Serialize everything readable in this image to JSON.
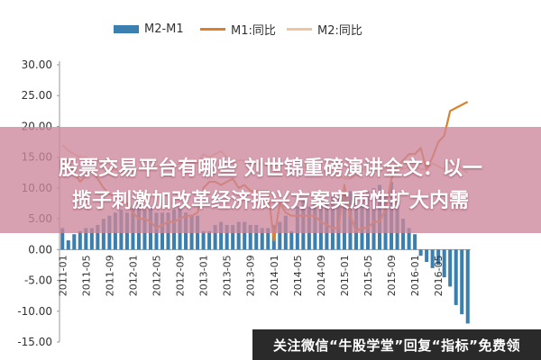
{
  "chart_data": {
    "type": "bar+line",
    "legend_position": "top",
    "grid": false,
    "ylim": [
      -15,
      30
    ],
    "yticks": [
      "30.00",
      "25.00",
      "20.00",
      "15.00",
      "10.00",
      "5.00",
      "0.00",
      "-5.00",
      "-10.00",
      "-15.00"
    ],
    "x_tick_labels": [
      "2011-01",
      "2011-05",
      "2011-09",
      "2012-01",
      "2012-05",
      "2012-09",
      "2013-01",
      "2013-05",
      "2013-09",
      "2014-01",
      "2014-05",
      "2014-09",
      "2015-01",
      "2015-05",
      "2015-09",
      "2016-01",
      "2016-05"
    ],
    "series": [
      {
        "name": "M2-M1",
        "kind": "bar",
        "color": "#3a7fad",
        "values": [
          3.5,
          1.5,
          2.5,
          3.0,
          3.5,
          3.5,
          4.0,
          5.0,
          5.5,
          6.0,
          6.5,
          6.0,
          7.0,
          8.0,
          6.5,
          7.0,
          6.0,
          6.0,
          6.0,
          6.5,
          7.0,
          6.0,
          5.5,
          5.5,
          3.0,
          3.0,
          4.0,
          4.5,
          4.0,
          4.0,
          4.5,
          4.5,
          4.0,
          4.0,
          3.5,
          3.5,
          4.0,
          4.5,
          5.5,
          3.0,
          7.0,
          8.0,
          7.0,
          7.5,
          8.0,
          8.0,
          9.0,
          8.5,
          9.5,
          9.5,
          9.0,
          9.0,
          9.5,
          10.0,
          10.5,
          9.0,
          11.0,
          8.0,
          5.0,
          3.5,
          2.5,
          -1.0,
          -2.0,
          -3.0,
          -2.5,
          -4.5,
          -6.0,
          -9.0,
          -10.5,
          -12.0
        ]
      },
      {
        "name": "M1:同比",
        "kind": "line",
        "color": "#d9822b",
        "values": [
          13.5,
          14.5,
          12.5,
          11.0,
          12.0,
          13.0,
          11.5,
          10.0,
          9.0,
          8.5,
          8.0,
          7.5,
          6.0,
          5.0,
          5.0,
          4.5,
          3.5,
          4.0,
          4.5,
          4.5,
          5.0,
          5.5,
          5.5,
          6.0,
          10.0,
          11.0,
          11.0,
          10.5,
          11.0,
          11.5,
          10.0,
          10.5,
          9.5,
          9.5,
          9.5,
          9.5,
          1.5,
          7.5,
          6.0,
          5.5,
          5.5,
          5.5,
          5.5,
          5.5,
          4.5,
          4.0,
          3.5,
          3.5,
          10.5,
          5.5,
          3.0,
          3.5,
          3.5,
          4.5,
          4.5,
          6.5,
          11.5,
          13.5,
          14.5,
          15.5,
          15.5,
          16.5,
          13.0,
          15.0,
          17.5,
          18.5,
          22.5,
          23.0,
          23.5,
          24.0
        ]
      },
      {
        "name": "M2:同比",
        "kind": "line",
        "color": "#f0c49e",
        "values": [
          17.0,
          16.0,
          15.5,
          15.0,
          15.0,
          14.5,
          14.5,
          13.5,
          13.0,
          13.0,
          12.5,
          13.5,
          12.5,
          13.0,
          13.0,
          13.0,
          13.5,
          13.5,
          13.0,
          13.5,
          14.0,
          14.5,
          14.0,
          14.0,
          15.5,
          15.0,
          15.5,
          16.0,
          15.0,
          14.0,
          14.5,
          14.5,
          14.0,
          14.0,
          14.0,
          13.5,
          13.0,
          13.0,
          12.0,
          12.5,
          13.0,
          13.5,
          13.0,
          13.0,
          12.5,
          12.5,
          12.5,
          12.0,
          11.5,
          11.5,
          12.0,
          13.0,
          13.0,
          13.0,
          13.0,
          13.0,
          13.5,
          14.0,
          13.0,
          13.5,
          13.5,
          13.0,
          13.0,
          14.0,
          13.5,
          13.0,
          14.5,
          14.0,
          13.0,
          12.5
        ]
      }
    ]
  },
  "banner": {
    "line1": "股票交易平台有哪些 刘世锦重磅演讲全文：以一",
    "line2": "揽子刺激加改革经济振兴方案实质性扩大内需"
  },
  "watermark": {
    "text": "关注微信“牛股学堂”回复“指标”免费领"
  }
}
